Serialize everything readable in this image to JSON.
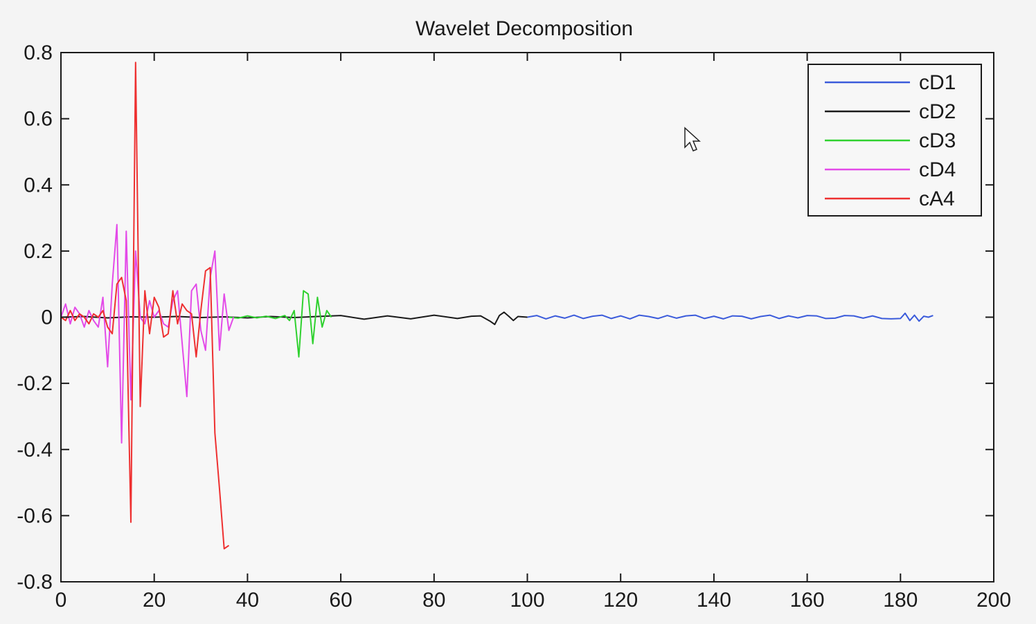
{
  "chart_data": {
    "type": "line",
    "title": "Wavelet Decomposition",
    "xlabel": "",
    "ylabel": "",
    "xlim": [
      0,
      200
    ],
    "ylim": [
      -0.8,
      0.8
    ],
    "x_ticks": [
      0,
      20,
      40,
      60,
      80,
      100,
      120,
      140,
      160,
      180,
      200
    ],
    "y_ticks": [
      0.8,
      0.6,
      0.4,
      0.2,
      0,
      -0.2,
      -0.4,
      -0.6,
      -0.8
    ],
    "x_tick_labels": [
      "0",
      "20",
      "40",
      "60",
      "80",
      "100",
      "120",
      "140",
      "160",
      "180",
      "200"
    ],
    "y_tick_labels": [
      "0.8",
      "0.6",
      "0.4",
      "0.2",
      "0",
      "-0.2",
      "-0.4",
      "-0.6",
      "-0.8"
    ],
    "grid": false,
    "legend_position": "top-right",
    "series": [
      {
        "name": "cD1",
        "color": "#3b5bdb",
        "x": [
          100,
          102,
          104,
          106,
          108,
          110,
          112,
          114,
          116,
          118,
          120,
          122,
          124,
          126,
          128,
          130,
          132,
          134,
          136,
          138,
          140,
          142,
          144,
          146,
          148,
          150,
          152,
          154,
          156,
          158,
          160,
          162,
          164,
          166,
          168,
          170,
          172,
          174,
          176,
          178,
          180,
          181,
          182,
          183,
          184,
          185,
          186,
          187
        ],
        "y": [
          0.0,
          0.005,
          -0.005,
          0.004,
          -0.003,
          0.006,
          -0.004,
          0.003,
          0.006,
          -0.004,
          0.004,
          -0.005,
          0.006,
          0.002,
          -0.004,
          0.005,
          -0.003,
          0.004,
          0.006,
          -0.004,
          0.003,
          -0.005,
          0.004,
          0.003,
          -0.005,
          0.002,
          0.006,
          -0.004,
          0.004,
          -0.002,
          0.005,
          0.004,
          -0.004,
          -0.003,
          0.005,
          0.004,
          -0.003,
          0.004,
          -0.004,
          -0.005,
          -0.004,
          0.012,
          -0.01,
          0.006,
          -0.012,
          0.003,
          0.0,
          0.005
        ]
      },
      {
        "name": "cD2",
        "color": "#1a1a1a",
        "x": [
          0,
          5,
          10,
          15,
          20,
          25,
          30,
          35,
          40,
          45,
          50,
          55,
          60,
          65,
          70,
          75,
          80,
          85,
          88,
          90,
          92,
          93,
          94,
          95,
          96,
          97,
          98,
          100
        ],
        "y": [
          0.0,
          0.002,
          -0.002,
          0.001,
          0.0,
          0.002,
          -0.001,
          0.001,
          -0.002,
          0.002,
          -0.001,
          0.002,
          0.005,
          -0.006,
          0.004,
          -0.005,
          0.006,
          -0.004,
          0.003,
          0.004,
          -0.012,
          -0.022,
          0.005,
          0.015,
          0.003,
          -0.01,
          0.002,
          0.0
        ]
      },
      {
        "name": "cD3",
        "color": "#2fd12f",
        "x": [
          36,
          38,
          40,
          42,
          44,
          46,
          48,
          49,
          50,
          51,
          52,
          53,
          54,
          55,
          56,
          57,
          58
        ],
        "y": [
          0.0,
          -0.003,
          0.004,
          -0.002,
          0.003,
          -0.004,
          0.005,
          -0.01,
          0.02,
          -0.12,
          0.08,
          0.07,
          -0.08,
          0.06,
          -0.03,
          0.02,
          0.0
        ]
      },
      {
        "name": "cD4",
        "color": "#e34ae8",
        "x": [
          0,
          1,
          2,
          3,
          4,
          5,
          6,
          7,
          8,
          9,
          10,
          11,
          12,
          13,
          14,
          15,
          16,
          17,
          18,
          19,
          20,
          21,
          22,
          23,
          24,
          25,
          26,
          27,
          28,
          29,
          30,
          31,
          32,
          33,
          34,
          35,
          36,
          37
        ],
        "y": [
          0.0,
          0.04,
          -0.02,
          0.03,
          0.01,
          -0.03,
          0.02,
          -0.01,
          -0.03,
          0.06,
          -0.15,
          0.1,
          0.28,
          -0.38,
          0.26,
          -0.25,
          0.2,
          0.0,
          -0.02,
          0.05,
          0.0,
          0.02,
          -0.02,
          -0.03,
          0.05,
          0.08,
          -0.08,
          -0.24,
          0.08,
          0.1,
          -0.04,
          -0.1,
          0.12,
          0.2,
          -0.1,
          0.07,
          -0.04,
          0.0
        ]
      },
      {
        "name": "cA4",
        "color": "#ee3030",
        "x": [
          0,
          1,
          2,
          3,
          4,
          5,
          6,
          7,
          8,
          9,
          10,
          11,
          12,
          13,
          14,
          15,
          16,
          17,
          18,
          19,
          20,
          21,
          22,
          23,
          24,
          25,
          26,
          27,
          28,
          29,
          30,
          31,
          32,
          33,
          34,
          35,
          36
        ],
        "y": [
          0.0,
          -0.01,
          0.02,
          -0.01,
          0.01,
          0.0,
          -0.02,
          0.01,
          0.0,
          0.02,
          -0.03,
          -0.05,
          0.1,
          0.12,
          0.05,
          -0.62,
          0.77,
          -0.27,
          0.08,
          -0.05,
          0.06,
          0.03,
          -0.06,
          -0.05,
          0.08,
          -0.02,
          0.04,
          0.02,
          0.01,
          -0.12,
          0.02,
          0.14,
          0.15,
          -0.35,
          -0.52,
          -0.7,
          -0.69
        ]
      }
    ]
  },
  "cursor": {
    "icon": "mouse-pointer-icon"
  }
}
